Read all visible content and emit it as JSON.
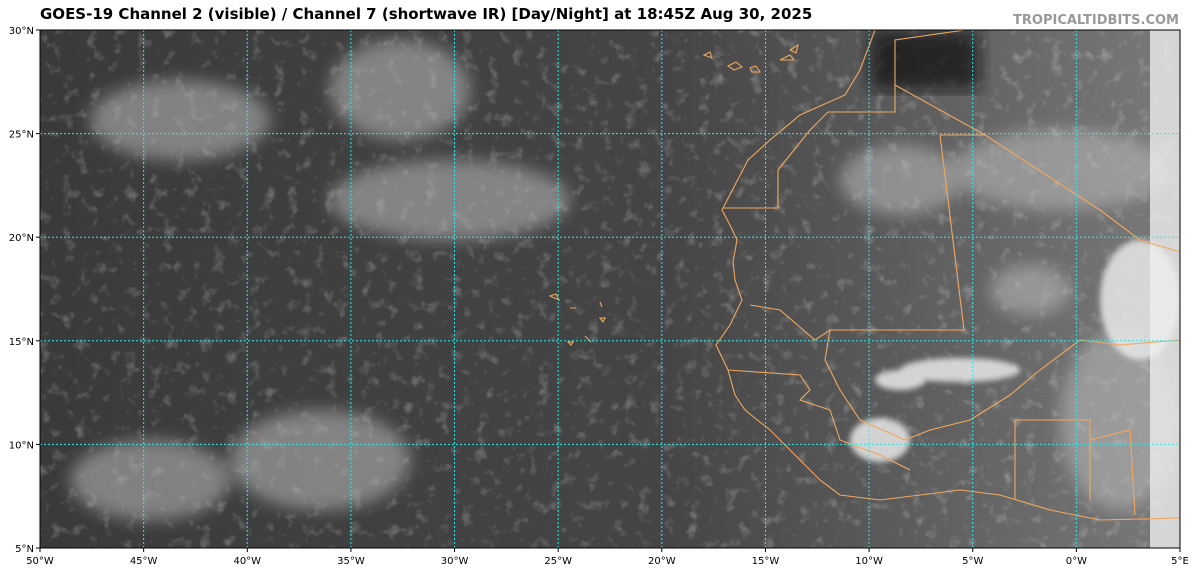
{
  "header": {
    "title": "GOES-19 Channel 2 (visible) / Channel 7 (shortwave IR) [Day/Night] at 18:45Z Aug 30, 2025",
    "credit": "TROPICALTIDBITS.COM"
  },
  "map": {
    "xlim": [
      -50,
      5
    ],
    "ylim": [
      5,
      30
    ],
    "xticks": [
      {
        "value": -50,
        "label": "50°W"
      },
      {
        "value": -45,
        "label": "45°W"
      },
      {
        "value": -40,
        "label": "40°W"
      },
      {
        "value": -35,
        "label": "35°W"
      },
      {
        "value": -30,
        "label": "30°W"
      },
      {
        "value": -25,
        "label": "25°W"
      },
      {
        "value": -20,
        "label": "20°W"
      },
      {
        "value": -15,
        "label": "15°W"
      },
      {
        "value": -10,
        "label": "10°W"
      },
      {
        "value": -5,
        "label": "5°W"
      },
      {
        "value": 0,
        "label": "0°W"
      },
      {
        "value": 5,
        "label": "5°E"
      }
    ],
    "yticks": [
      {
        "value": 5,
        "label": "5°N"
      },
      {
        "value": 10,
        "label": "10°N"
      },
      {
        "value": 15,
        "label": "15°N"
      },
      {
        "value": 20,
        "label": "20°N"
      },
      {
        "value": 25,
        "label": "25°N"
      },
      {
        "value": 30,
        "label": "30°N"
      }
    ]
  }
}
